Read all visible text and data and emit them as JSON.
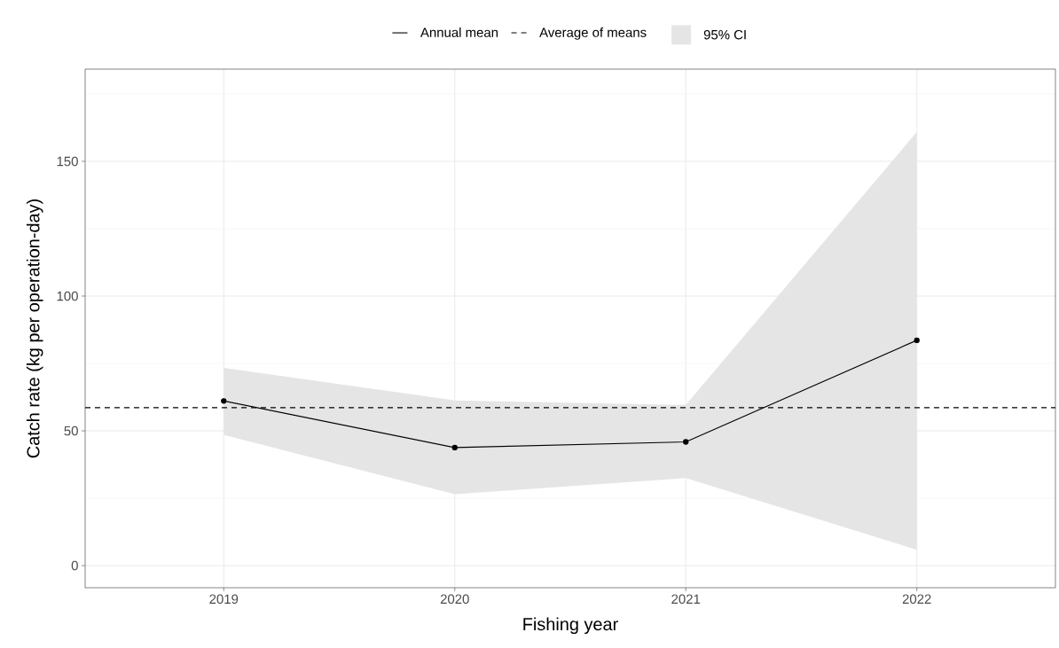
{
  "chart_data": {
    "type": "line",
    "xlabel": "Fishing year",
    "ylabel": "Catch rate (kg per operation-day)",
    "categories": [
      "2019",
      "2020",
      "2021",
      "2022"
    ],
    "series": [
      {
        "name": "Annual mean",
        "color": "#000000",
        "values": [
          61.1,
          43.8,
          45.9,
          83.6
        ],
        "lower": [
          48.5,
          26.5,
          32.5,
          5.9
        ],
        "upper": [
          73.4,
          61.3,
          59.6,
          160.9
        ]
      }
    ],
    "annotations": [
      "95% CI"
    ],
    "ref_lines": [
      {
        "axis": "y",
        "value": 58.6,
        "label": "Average of means",
        "line_style": "dashed",
        "color": "#000000"
      }
    ],
    "ylim": [
      -8.2,
      184.2
    ],
    "yticks": [
      0,
      50,
      100,
      150
    ],
    "grid": true,
    "legend": "top",
    "marker": "circle",
    "line_style": "solid"
  }
}
